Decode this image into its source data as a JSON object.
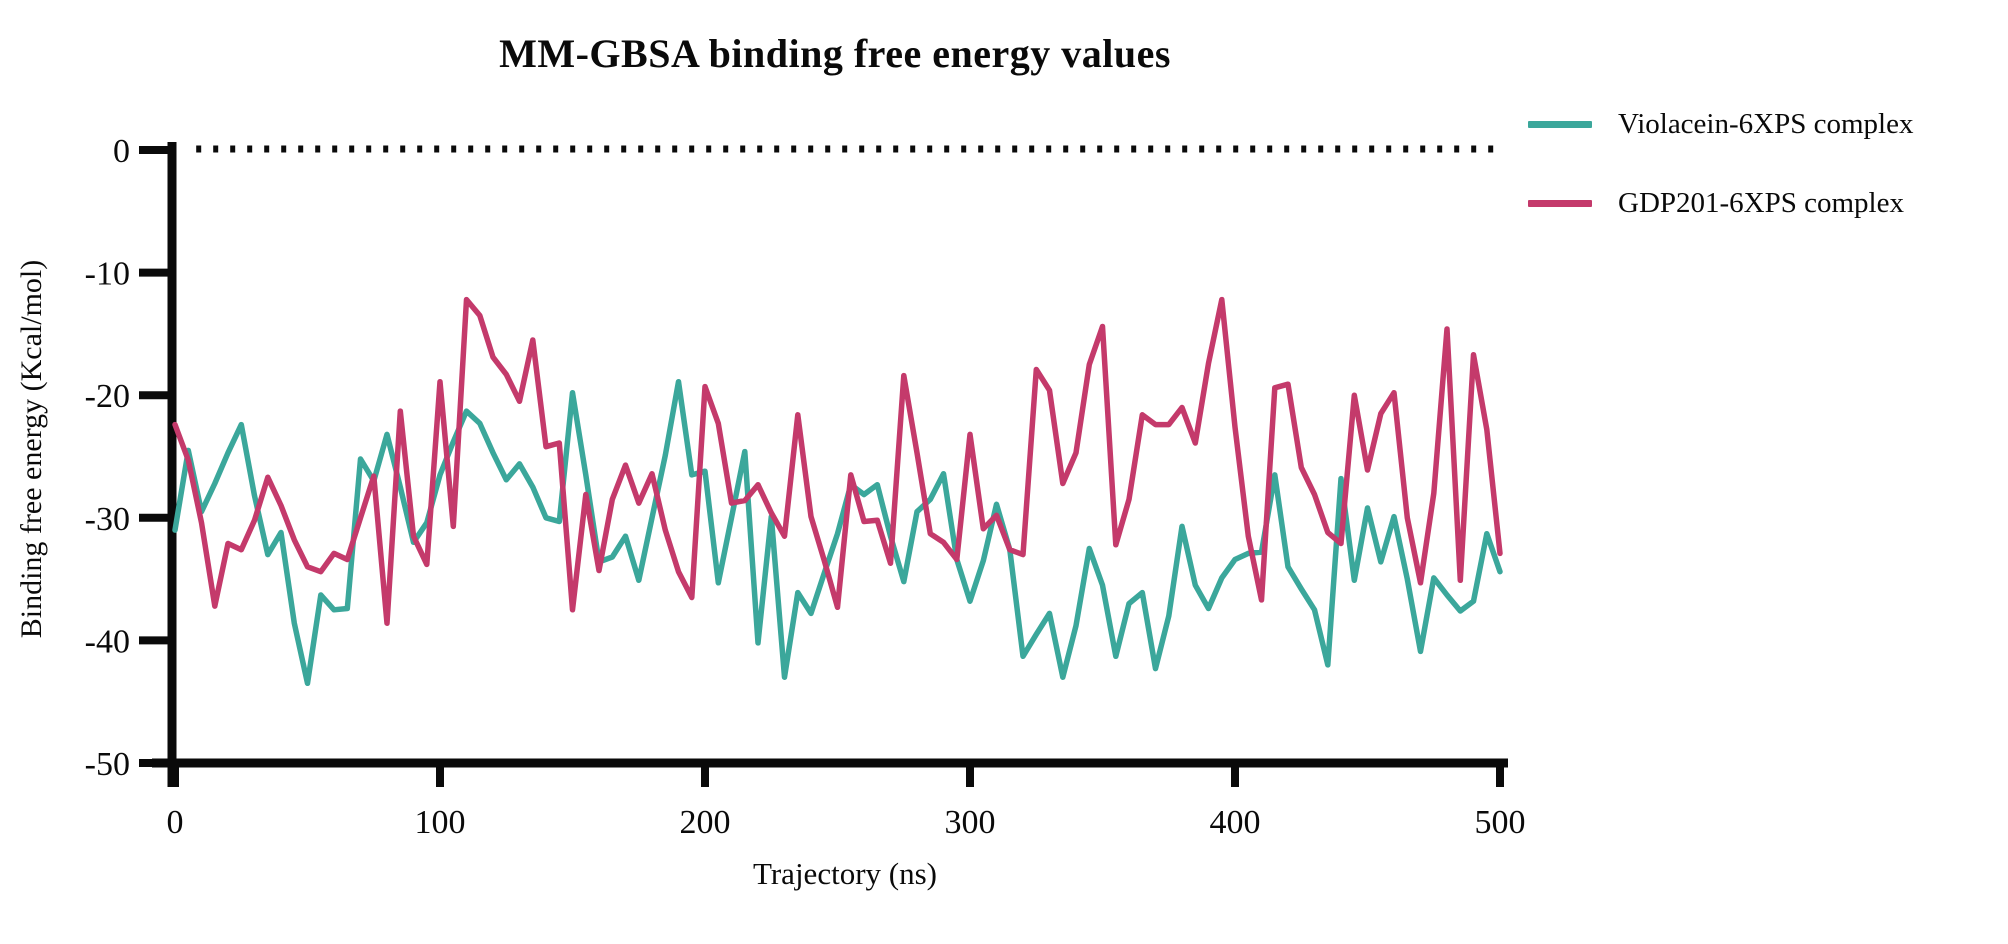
{
  "figure": {
    "title": "MM-GBSA binding free energy values"
  },
  "axes": {
    "x_label": "Trajectory (ns)",
    "y_label": "Binding free energy (Kcal/mol)",
    "x_ticks": [
      0,
      100,
      200,
      300,
      400,
      500
    ],
    "y_ticks": [
      0,
      -10,
      -20,
      -30,
      -40,
      -50
    ],
    "axis_color": "#0a0a0a"
  },
  "legend": {
    "items": [
      {
        "label": "Violacein-6XPS complex",
        "color": "#3BA79B"
      },
      {
        "label": "GDP201-6XPS complex",
        "color": "#C43A6B"
      }
    ],
    "position": "top-right"
  },
  "chart_data": {
    "type": "line",
    "title": "MM-GBSA binding free energy values",
    "xlabel": "Trajectory (ns)",
    "ylabel": "Binding free energy (Kcal/mol)",
    "xlim": [
      0,
      500
    ],
    "ylim": [
      -50,
      0
    ],
    "grid": false,
    "reference_line": {
      "y": 0,
      "style": "dotted",
      "color": "#0a0a0a"
    },
    "x": [
      0,
      5,
      10,
      15,
      20,
      25,
      30,
      35,
      40,
      45,
      50,
      55,
      60,
      65,
      70,
      75,
      80,
      85,
      90,
      95,
      100,
      105,
      110,
      115,
      120,
      125,
      130,
      135,
      140,
      145,
      150,
      155,
      160,
      165,
      170,
      175,
      180,
      185,
      190,
      195,
      200,
      205,
      210,
      215,
      220,
      225,
      230,
      235,
      240,
      245,
      250,
      255,
      260,
      265,
      270,
      275,
      280,
      285,
      290,
      295,
      300,
      305,
      310,
      315,
      320,
      325,
      330,
      335,
      340,
      345,
      350,
      355,
      360,
      365,
      370,
      375,
      380,
      385,
      390,
      395,
      400,
      405,
      410,
      415,
      420,
      425,
      430,
      435,
      440,
      445,
      450,
      455,
      460,
      465,
      470,
      475,
      480,
      485,
      490,
      495,
      500
    ],
    "series": [
      {
        "name": "Violacein-6XPS complex",
        "color": "#3BA79B",
        "values": [
          -31,
          -24.5,
          -29.5,
          -27.2,
          -24.7,
          -22.4,
          -28.2,
          -33,
          -31.2,
          -38.6,
          -43.5,
          -36.3,
          -37.5,
          -37.4,
          -25.2,
          -27,
          -23.2,
          -27.5,
          -32,
          -30.4,
          -26.5,
          -23.8,
          -21.3,
          -22.3,
          -24.7,
          -26.9,
          -25.6,
          -27.5,
          -30,
          -30.3,
          -19.8,
          -26.5,
          -33.6,
          -33.2,
          -31.5,
          -35.1,
          -30,
          -24.9,
          -18.9,
          -26.5,
          -26.2,
          -35.3,
          -30,
          -24.6,
          -40.2,
          -29.9,
          -43,
          -36.1,
          -37.8,
          -34.5,
          -31.3,
          -27.3,
          -28.1,
          -27.3,
          -31.5,
          -35.2,
          -29.5,
          -28.5,
          -26.4,
          -33.4,
          -36.8,
          -33.5,
          -28.9,
          -32.6,
          -41.3,
          -39.5,
          -37.8,
          -43,
          -38.8,
          -32.5,
          -35.5,
          -41.3,
          -37,
          -36.1,
          -42.3,
          -38,
          -30.7,
          -35.5,
          -37.4,
          -34.9,
          -33.4,
          -32.9,
          -32.8,
          -26.5,
          -34,
          -35.8,
          -37.5,
          -42,
          -26.8,
          -35.1,
          -29.2,
          -33.6,
          -29.9,
          -35,
          -40.9,
          -34.9,
          -36.3,
          -37.6,
          -36.8,
          -31.3,
          -34.4
        ]
      },
      {
        "name": "GDP201-6XPS complex",
        "color": "#C43A6B",
        "values": [
          -22.4,
          -25.3,
          -30.4,
          -37.2,
          -32.1,
          -32.6,
          -30.2,
          -26.7,
          -29,
          -31.8,
          -34,
          -34.4,
          -32.9,
          -33.4,
          -30,
          -26.6,
          -38.6,
          -21.3,
          -31.5,
          -33.8,
          -18.9,
          -30.7,
          -12.2,
          -13.5,
          -16.9,
          -18.3,
          -20.5,
          -15.5,
          -24.2,
          -23.9,
          -37.5,
          -28.1,
          -34.3,
          -28.5,
          -25.7,
          -28.8,
          -26.4,
          -31,
          -34.4,
          -36.5,
          -19.3,
          -22.3,
          -28.8,
          -28.6,
          -27.3,
          -29.6,
          -31.5,
          -21.6,
          -29.9,
          -33.5,
          -37.3,
          -26.5,
          -30.3,
          -30.2,
          -33.7,
          -18.4,
          -24.7,
          -31.3,
          -32,
          -33.4,
          -23.2,
          -30.9,
          -29.8,
          -32.6,
          -33,
          -17.9,
          -19.6,
          -27.2,
          -24.7,
          -17.5,
          -14.4,
          -32.2,
          -28.5,
          -21.6,
          -22.4,
          -22.4,
          -21,
          -23.9,
          -17.4,
          -12.2,
          -22.6,
          -31.5,
          -36.7,
          -19.4,
          -19.1,
          -25.9,
          -28.1,
          -31.2,
          -32.1,
          -20,
          -26.1,
          -21.5,
          -19.8,
          -30,
          -35.3,
          -28,
          -14.6,
          -35.1,
          -16.7,
          -22.8,
          -32.9
        ]
      }
    ]
  }
}
